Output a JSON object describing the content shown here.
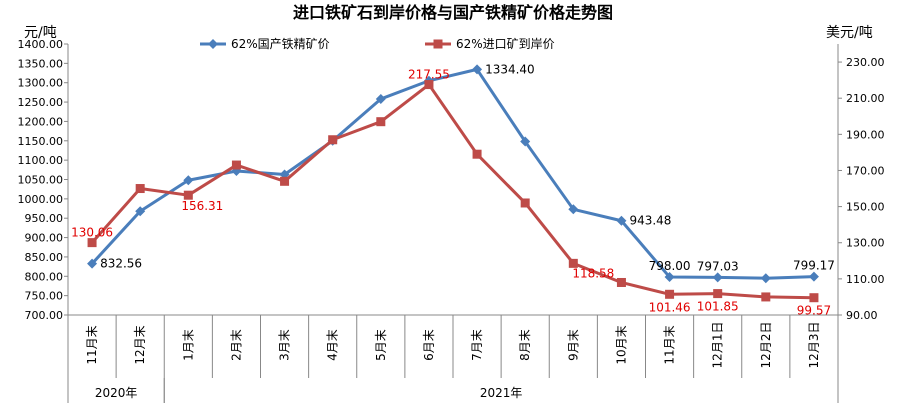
{
  "chart_data": {
    "type": "line",
    "title": "进口铁矿石到岸价格与国产铁精矿价格走势图",
    "ylabel_left": "元/吨",
    "ylabel_right": "美元/吨",
    "ylim_left": [
      700,
      1400
    ],
    "ylim_right": [
      90,
      240
    ],
    "yticks_left": [
      "700.00",
      "750.00",
      "800.00",
      "850.00",
      "900.00",
      "950.00",
      "1000.00",
      "1050.00",
      "1100.00",
      "1150.00",
      "1200.00",
      "1250.00",
      "1300.00",
      "1350.00",
      "1400.00"
    ],
    "yticks_right": [
      "90.00",
      "110.00",
      "130.00",
      "150.00",
      "170.00",
      "190.00",
      "210.00",
      "230.00"
    ],
    "categories": [
      "11月末",
      "12月末",
      "1月末",
      "2月末",
      "3月末",
      "4月末",
      "5月末",
      "6月末",
      "7月末",
      "8月末",
      "9月末",
      "10月末",
      "11月末",
      "12月1日",
      "12月2日",
      "12月3日"
    ],
    "groups": [
      {
        "label": "2020年",
        "start": 0,
        "end": 1
      },
      {
        "label": "2021年",
        "start": 2,
        "end": 15
      }
    ],
    "legend_position": "top",
    "series": [
      {
        "name": "62%国产铁精矿价",
        "axis": "left",
        "color": "#4a7ebb",
        "marker": "diamond",
        "values": [
          832.56,
          968,
          1048,
          1072,
          1063,
          1150,
          1258,
          1305,
          1334.4,
          1148,
          973,
          943.48,
          798.0,
          797.03,
          795,
          799.17
        ],
        "labels": {
          "0": "832.56",
          "8": "1334.40",
          "11": "943.48",
          "12": "798.00",
          "13": "797.03",
          "15": "799.17"
        }
      },
      {
        "name": "62%进口矿到岸价",
        "axis": "right",
        "color": "#be4b48",
        "marker": "square",
        "values": [
          130.06,
          160,
          156.31,
          173,
          164,
          187,
          197,
          217.55,
          179,
          152,
          118.58,
          108,
          101.46,
          101.85,
          100,
          99.57
        ],
        "labels": {
          "0": "130.06",
          "2": "156.31",
          "7": "217.55",
          "10": "118.58",
          "12": "101.46",
          "13": "101.85",
          "15": "99.57"
        }
      }
    ]
  }
}
